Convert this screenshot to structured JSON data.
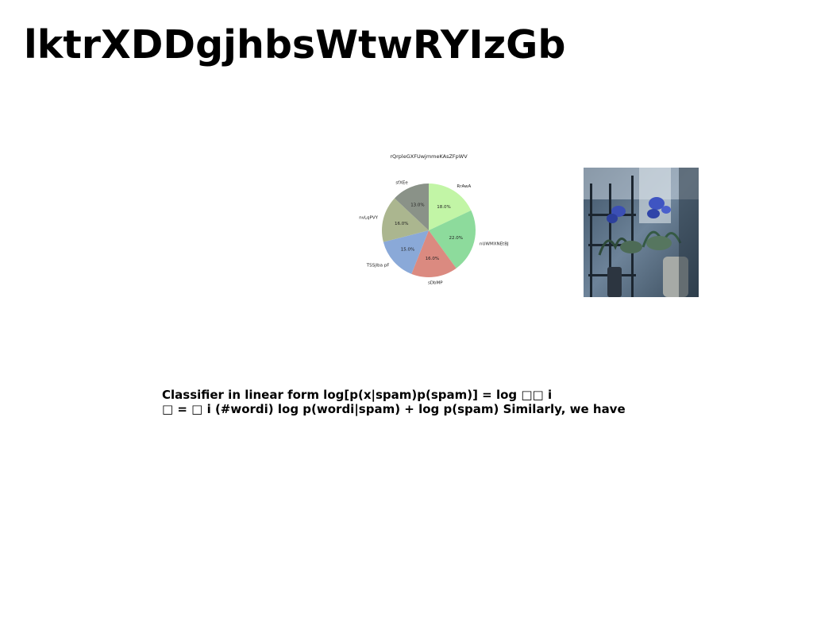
{
  "slide": {
    "title": "lktrXDDgjhbsWtwRYIzGb",
    "body_lines": [
      "Classifier in linear form log[p(x|spam)p(spam)] = log □□ i",
      "□ = □ i (#wordi) log p(wordi|spam) + log p(spam) Similarly, we have"
    ]
  },
  "chart_data": {
    "type": "pie",
    "title": "rQrpleGXFUwjmmeKAsZFpWV",
    "categories": [
      "RrAwA",
      "nUWMXNEtBJ",
      "sDbMP",
      "TSSjlba pF",
      "nvLqPVY",
      "sfXEe"
    ],
    "values": [
      18.0,
      22.0,
      16.0,
      15.0,
      16.0,
      13.0
    ],
    "value_labels": [
      "18.0%",
      "22.0%",
      "16.0%",
      "15.0%",
      "16.0%",
      "13.0%"
    ],
    "colors": [
      "#c2f5a6",
      "#8ddb9c",
      "#db8a80",
      "#8aa9d8",
      "#abb68f",
      "#8a9288"
    ],
    "start_angle": "top",
    "direction": "clockwise",
    "legend": "none"
  },
  "photo": {
    "icon": "plants-shelf-photo"
  }
}
